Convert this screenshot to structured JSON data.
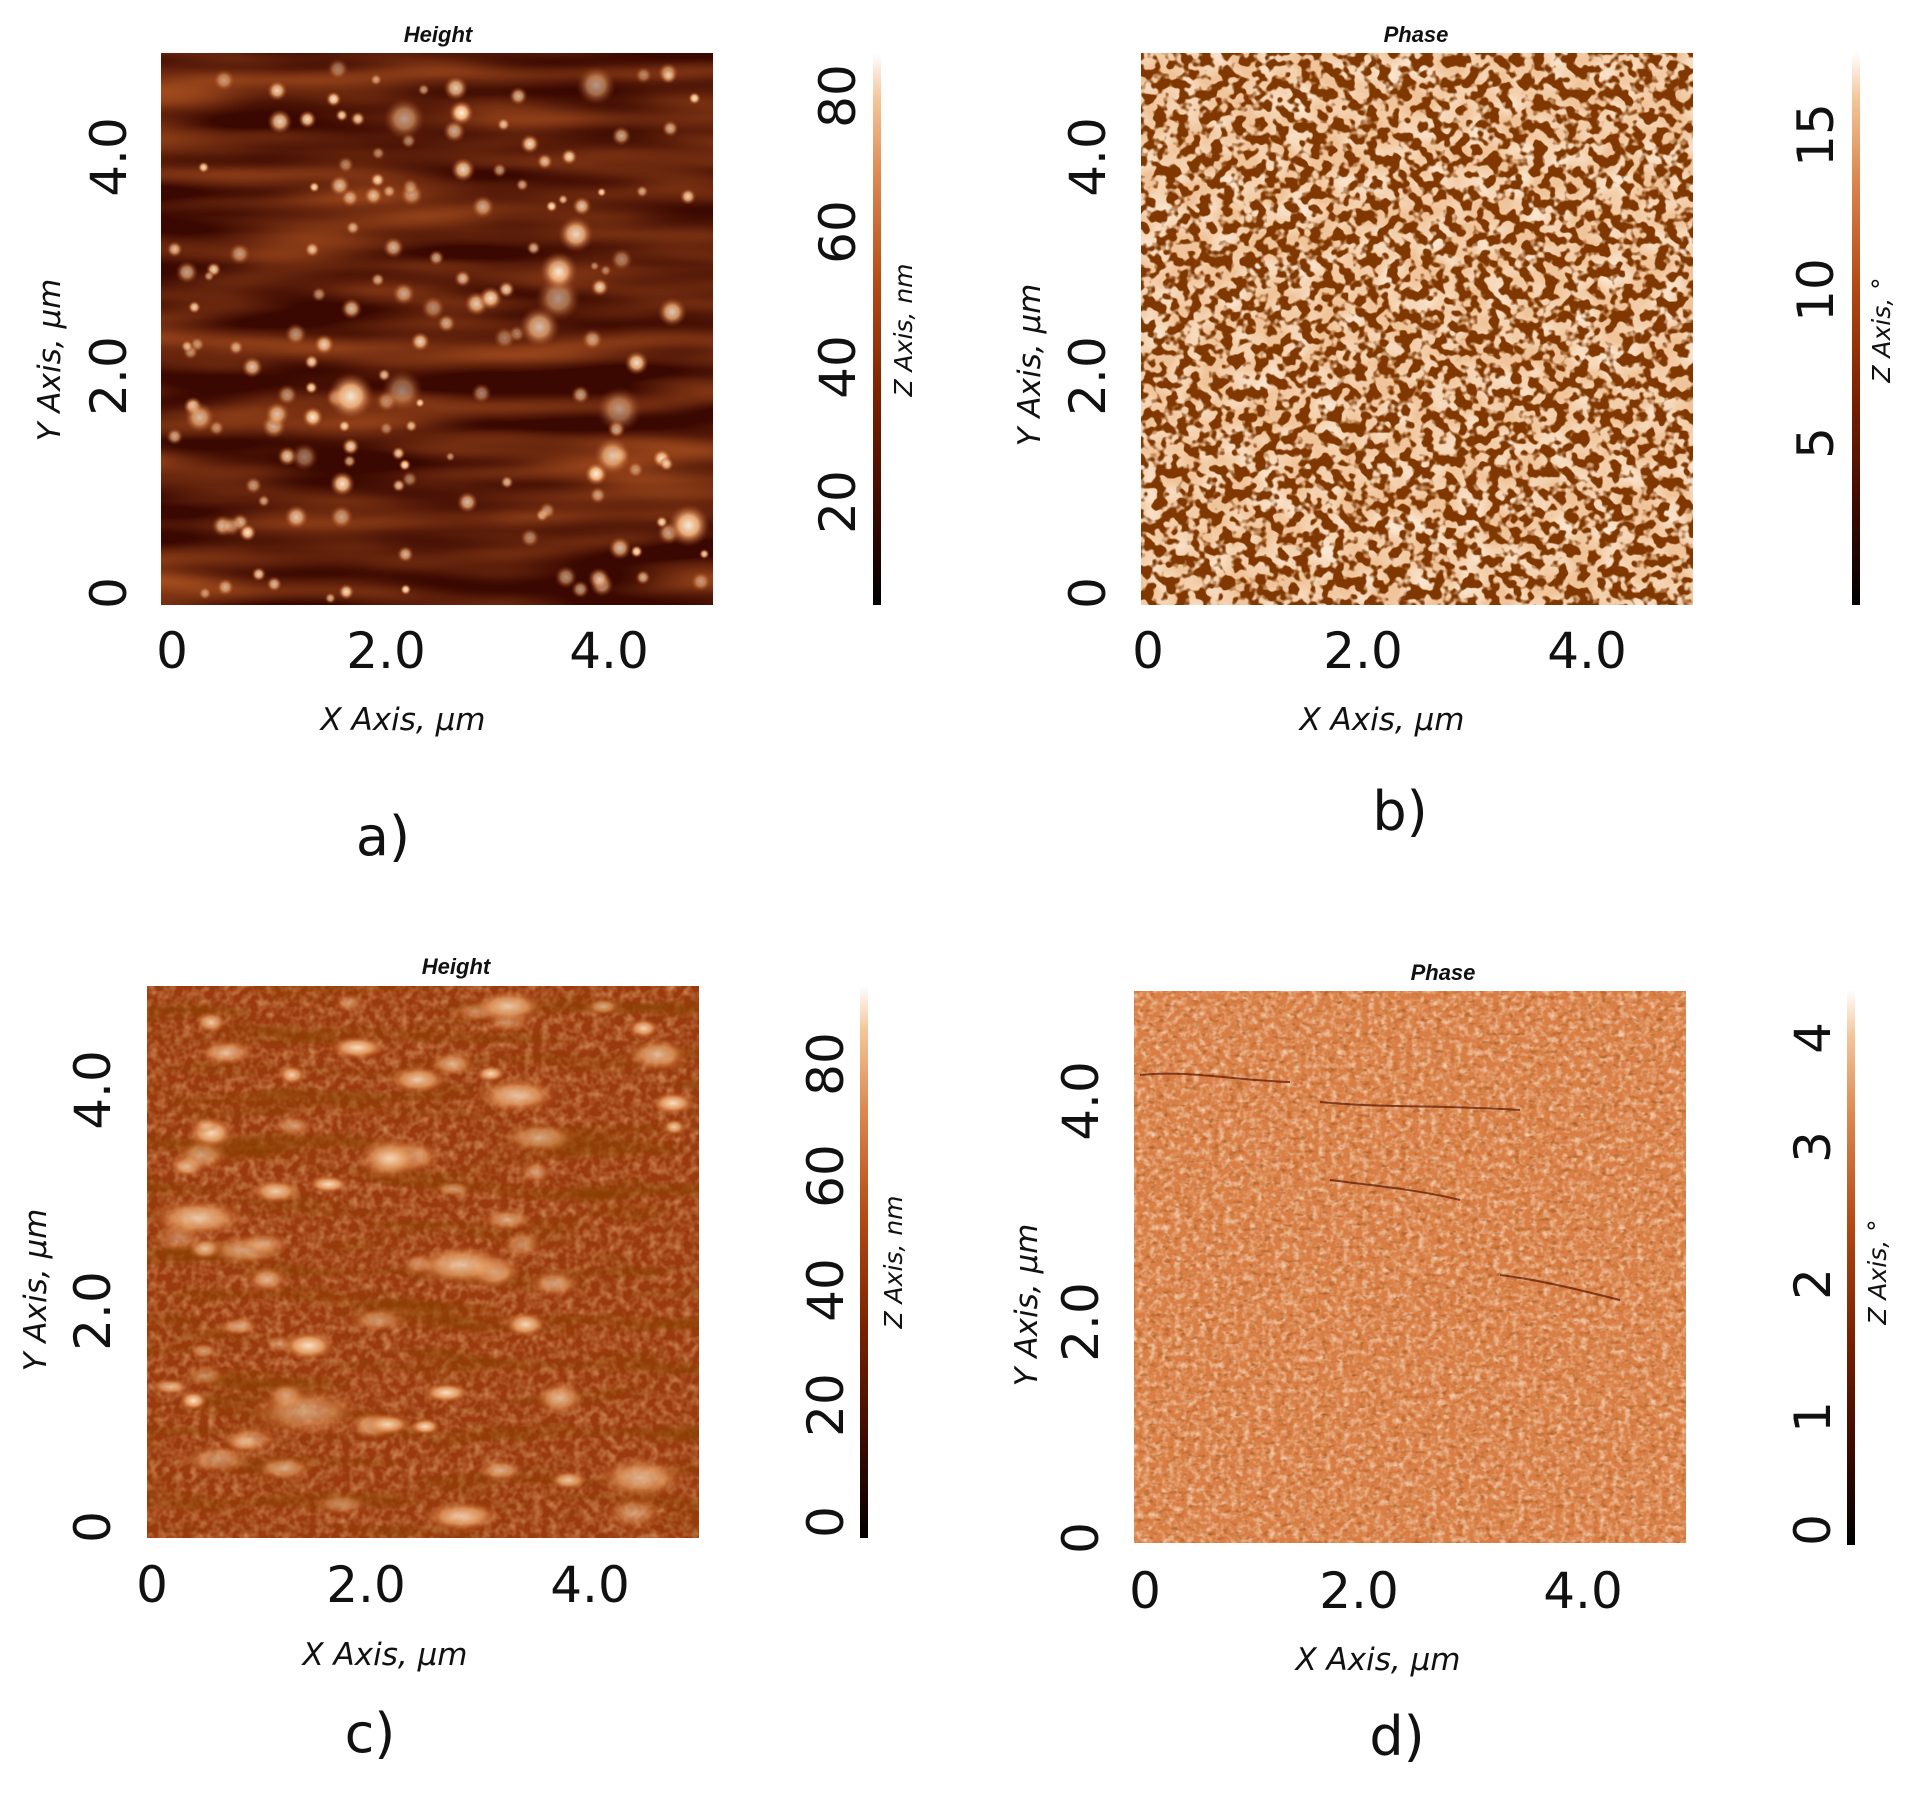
{
  "figure": {
    "panels": [
      {
        "id": "a",
        "label": "a)",
        "title": "Height",
        "x_axis_label": "X Axis, µm",
        "y_axis_label": "Y Axis, µm",
        "x_ticks": [
          "0",
          "2.0",
          "4.0"
        ],
        "y_ticks": [
          "0",
          "2.0",
          "4.0"
        ],
        "colorbar_label": "Z Axis, nm",
        "colorbar_ticks": [
          "20",
          "40",
          "60",
          "80"
        ],
        "colorbar_range": [
          5,
          88
        ],
        "image": "scattered bright round grains on dark background"
      },
      {
        "id": "b",
        "label": "b)",
        "title": "Phase",
        "x_axis_label": "X Axis, µm",
        "y_axis_label": "Y Axis, µm",
        "x_ticks": [
          "0",
          "2.0",
          "4.0"
        ],
        "y_ticks": [
          "0",
          "2.0",
          "4.0"
        ],
        "colorbar_label": "Z Axis, °",
        "colorbar_ticks": [
          "5",
          "10",
          "15"
        ],
        "colorbar_range": [
          0,
          18
        ],
        "image": "light granular surface with dark speckles"
      },
      {
        "id": "c",
        "label": "c)",
        "title": "Height",
        "x_axis_label": "X Axis, µm",
        "y_axis_label": "Y Axis, µm",
        "x_ticks": [
          "0",
          "2.0",
          "4.0"
        ],
        "y_ticks": [
          "0",
          "2.0",
          "4.0"
        ],
        "colorbar_label": "Z Axis, nm",
        "colorbar_ticks": [
          "0",
          "20",
          "40",
          "60",
          "80"
        ],
        "colorbar_range": [
          0,
          95
        ],
        "image": "mottled medium-brown surface with elongated bright grains"
      },
      {
        "id": "d",
        "label": "d)",
        "title": "Phase",
        "x_axis_label": "X Axis, µm",
        "y_axis_label": "Y Axis, µm",
        "x_ticks": [
          "0",
          "2.0",
          "4.0"
        ],
        "y_ticks": [
          "0",
          "2.0",
          "4.0"
        ],
        "colorbar_label": "Z Axis, °",
        "colorbar_ticks": [
          "0",
          "1",
          "2",
          "3",
          "4"
        ],
        "colorbar_range": [
          0,
          4.6
        ],
        "image": "uniform fine-grained orange texture"
      }
    ]
  },
  "colors": {
    "colormap": [
      "#000000",
      "#3d0a00",
      "#7a2200",
      "#b34a14",
      "#dc8a52",
      "#f4c79c",
      "#ffffff"
    ]
  }
}
